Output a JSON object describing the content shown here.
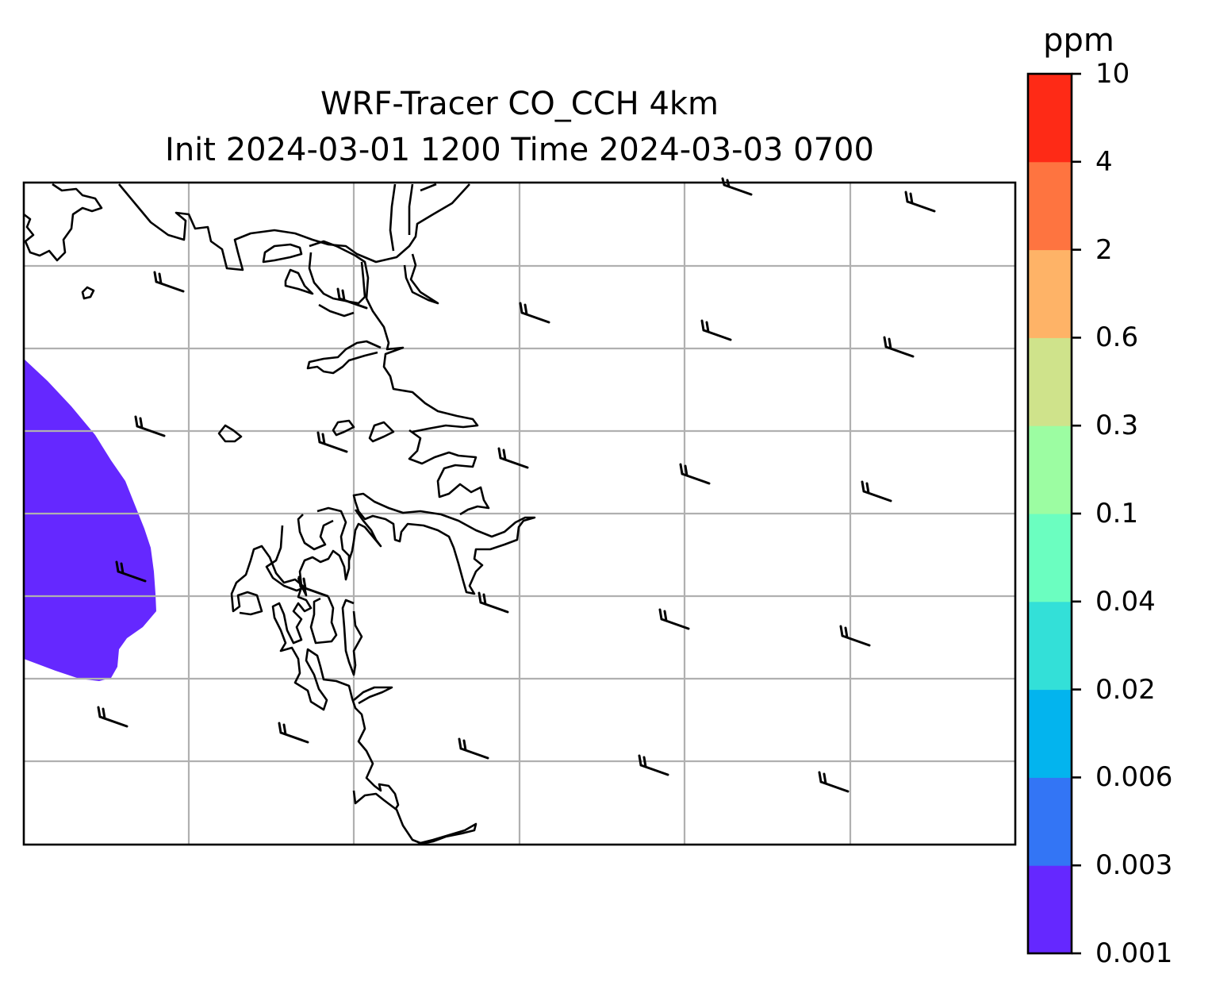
{
  "title": {
    "line1": "WRF-Tracer CO_CCH 4km",
    "line2": "Init 2024-03-01 1200 Time 2024-03-03 0700"
  },
  "colorbar": {
    "unit": "ppm",
    "levels": [
      "0.001",
      "0.003",
      "0.006",
      "0.02",
      "0.04",
      "0.1",
      "0.3",
      "0.6",
      "2",
      "4",
      "10"
    ],
    "colors": [
      "#6528ff",
      "#3375f5",
      "#03b4ee",
      "#33e0d8",
      "#6bfec0",
      "#9cfda2",
      "#cfe38b",
      "#feb367",
      "#fe7440",
      "#fe2a16"
    ]
  },
  "map": {
    "gridlines": true,
    "plume_level": "0.001–0.003 ppm",
    "plume_color": "#6528ff",
    "wind_barbs": "northwesterly, about 20 kt"
  }
}
